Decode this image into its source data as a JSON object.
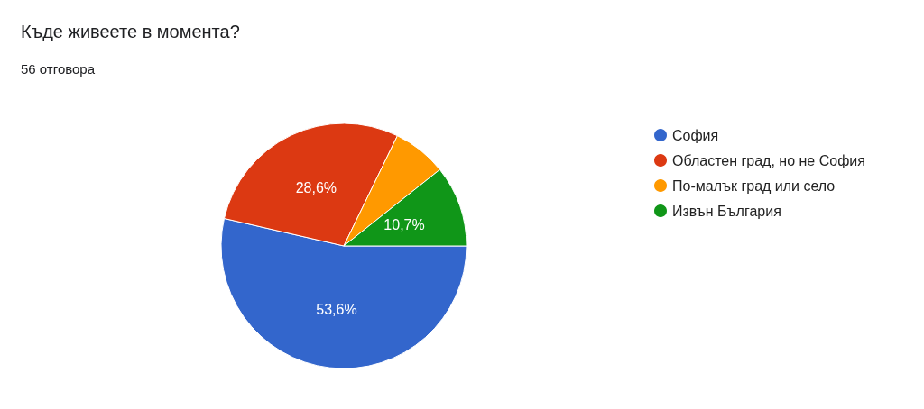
{
  "chart_data": {
    "type": "pie",
    "title": "Къде живеете в момента?",
    "subtitle": "56 отговора",
    "categories": [
      "София",
      "Областен град, но не София",
      "По-малък град или село",
      "Извън България"
    ],
    "values": [
      53.6,
      28.6,
      7.1,
      10.7
    ],
    "colors": [
      "#3366cc",
      "#dc3912",
      "#ff9900",
      "#109618"
    ],
    "value_labels": [
      "53,6%",
      "28,6%",
      null,
      "10,7%"
    ],
    "legend": "top right"
  }
}
